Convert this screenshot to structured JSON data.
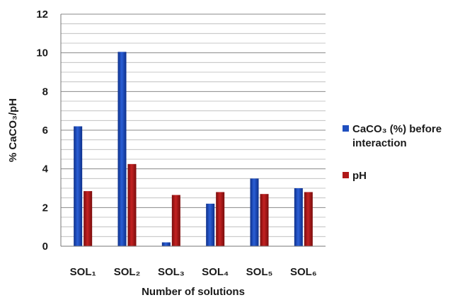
{
  "chart_data": {
    "type": "bar",
    "categories": [
      "SOL₁",
      "SOL₂",
      "SOL₃",
      "SOL₄",
      "SOL₅",
      "SOL₆"
    ],
    "series": [
      {
        "name": "CaCO₃ (%) before interaction",
        "values": [
          6.2,
          10.05,
          0.2,
          2.2,
          3.5,
          3.0
        ],
        "color": "#1f4fbf"
      },
      {
        "name": "pH",
        "values": [
          2.85,
          4.25,
          2.65,
          2.8,
          2.7,
          2.8
        ],
        "color": "#b01818"
      }
    ],
    "xlabel": "Number of solutions",
    "ylabel": "% CaCO₃/pH",
    "ylim": [
      0,
      12
    ],
    "yticks": [
      "0",
      "2",
      "4",
      "6",
      "8",
      "10",
      "12"
    ],
    "grid": true,
    "legend_position": "right"
  }
}
